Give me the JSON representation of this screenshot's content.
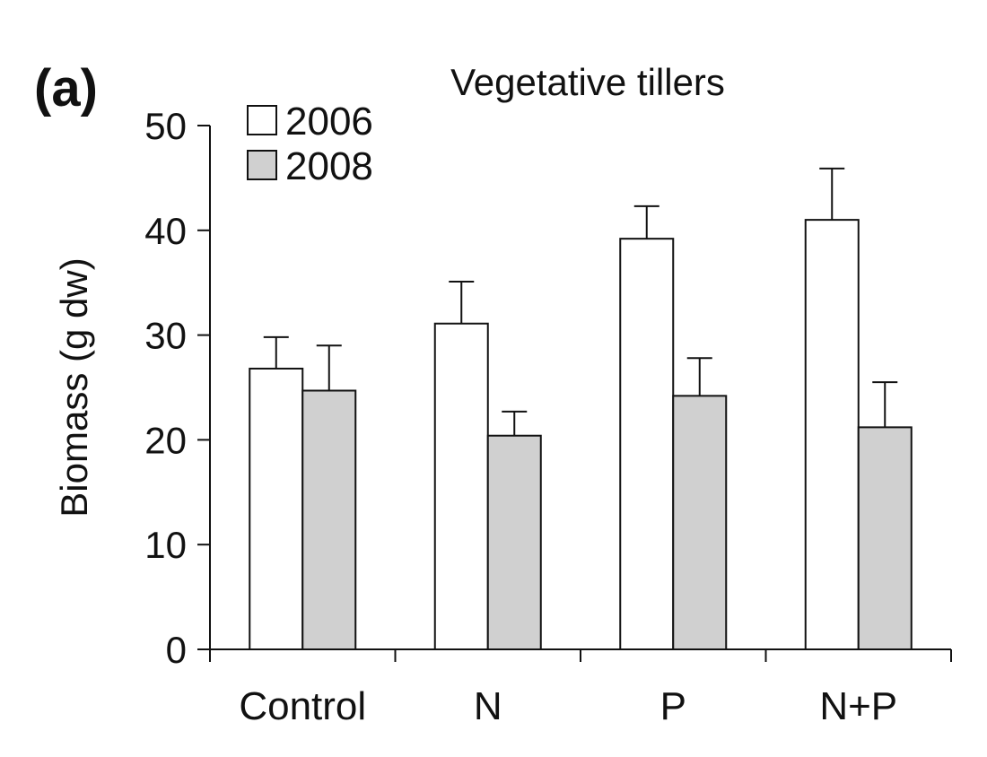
{
  "panel_label": "(a)",
  "chart_data": {
    "type": "bar",
    "title": "Vegetative tillers",
    "xlabel": "",
    "ylabel": "Biomass (g dw)",
    "ylim": [
      0,
      50
    ],
    "yticks": [
      0,
      10,
      20,
      30,
      40,
      50
    ],
    "categories": [
      "Control",
      "N",
      "P",
      "N+P"
    ],
    "series": [
      {
        "name": "2006",
        "color": "#ffffff",
        "values": [
          26.8,
          31.1,
          39.2,
          41.0
        ],
        "error": [
          3.0,
          4.0,
          3.1,
          4.9
        ]
      },
      {
        "name": "2008",
        "color": "#d0d0d0",
        "values": [
          24.7,
          20.4,
          24.2,
          21.2
        ],
        "error": [
          4.3,
          2.3,
          3.6,
          4.3
        ]
      }
    ],
    "error_bars": true,
    "grid": false,
    "legend_position": "top-left"
  }
}
